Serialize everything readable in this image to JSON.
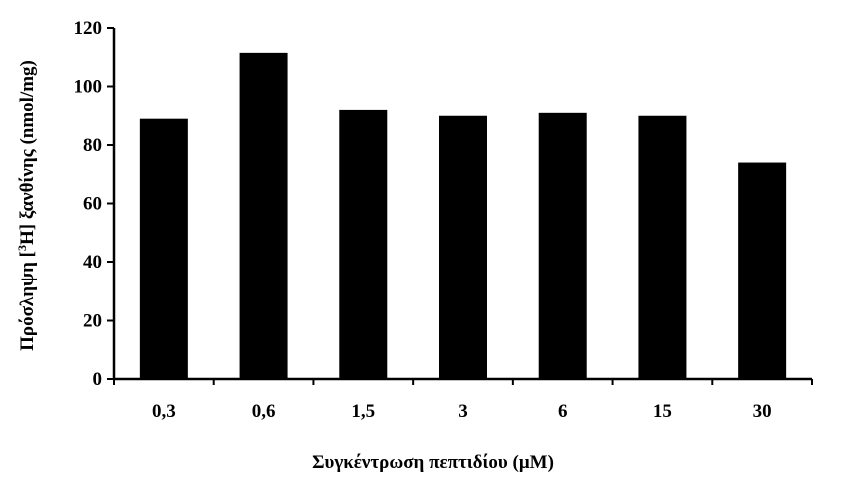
{
  "chart_data": {
    "type": "bar",
    "title": "",
    "xlabel": "Συγκέντρωση πεπτιδίου (μΜ)",
    "ylabel_parts": [
      "Πρόσληψη [",
      "3",
      "H] ξανθίνης (nmol/mg)"
    ],
    "categories": [
      "0,3",
      "0,6",
      "1,5",
      "3",
      "6",
      "15",
      "30"
    ],
    "values": [
      89,
      111.5,
      92,
      90,
      91,
      90,
      74
    ],
    "ylim": [
      0,
      120
    ],
    "yticks": [
      0,
      20,
      40,
      60,
      80,
      100,
      120
    ],
    "bar_color": "#000000",
    "grid": false,
    "legend": "none"
  }
}
